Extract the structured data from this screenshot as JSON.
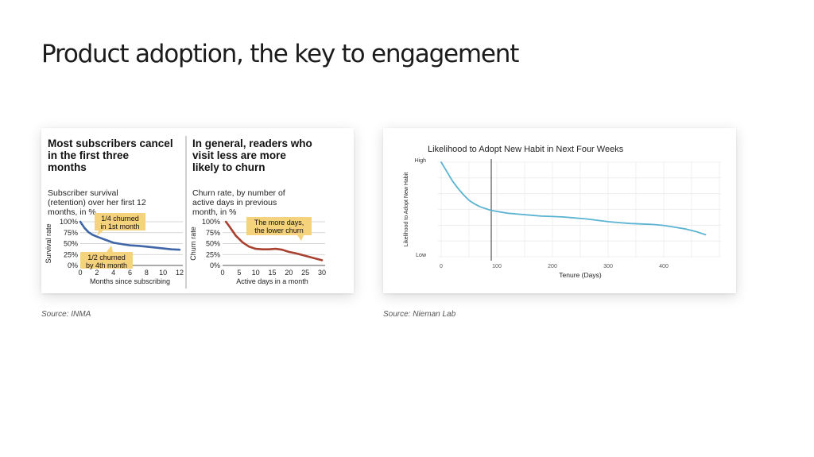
{
  "slide": {
    "title": "Product adoption, the key to engagement",
    "source_left": "Source: INMA",
    "source_right": "Source: Nieman Lab"
  },
  "colors": {
    "retention_line": "#3f66a6",
    "churn_line": "#a8412f",
    "callout_bg": "#f5d27c",
    "habit_line": "#5ab3d1",
    "marker_line": "#333333"
  },
  "chart_data": [
    {
      "type": "line",
      "title": "Most subscribers cancel in the first three months",
      "subtitle": "Subscriber survival (retention) over her first 12 months, in %",
      "xlabel": "Months since subscribing",
      "ylabel": "Survival rate",
      "xlim": [
        0,
        12
      ],
      "ylim": [
        0,
        100
      ],
      "xticks": [
        "0",
        "2",
        "4",
        "6",
        "8",
        "10",
        "12"
      ],
      "yticks": [
        "0%",
        "25%",
        "50%",
        "75%",
        "100%"
      ],
      "grid": true,
      "series": [
        {
          "x": [
            0,
            0.5,
            1,
            1.5,
            2,
            3,
            4,
            5,
            6,
            7,
            8,
            9,
            10,
            11,
            12
          ],
          "values": [
            100,
            86,
            76,
            70,
            66,
            59,
            52,
            49,
            46,
            45,
            43,
            41,
            39,
            37,
            36
          ]
        }
      ],
      "annotations": [
        {
          "lines": [
            "1/4 churned",
            "in 1st month"
          ]
        },
        {
          "lines": [
            "1/2 churned",
            "by 4th month"
          ]
        }
      ]
    },
    {
      "type": "line",
      "title": "In general, readers who visit less are more likely to churn",
      "subtitle": "Churn rate, by number of active days in previous month, in %",
      "xlabel": "Active days in a month",
      "ylabel": "Churn rate",
      "xlim": [
        0,
        30
      ],
      "ylim": [
        0,
        100
      ],
      "xticks": [
        "0",
        "5",
        "10",
        "15",
        "20",
        "25",
        "30"
      ],
      "yticks": [
        "0%",
        "25%",
        "50%",
        "75%",
        "100%"
      ],
      "grid": true,
      "series": [
        {
          "x": [
            1,
            2,
            4,
            6,
            8,
            10,
            12,
            14,
            16,
            18,
            20,
            22,
            24,
            26,
            28,
            30
          ],
          "values": [
            100,
            90,
            68,
            53,
            43,
            38,
            37,
            37,
            38,
            36,
            31,
            28,
            24,
            20,
            16,
            12
          ]
        }
      ],
      "annotations": [
        {
          "lines": [
            "The more days,",
            "the lower churn"
          ]
        }
      ]
    },
    {
      "type": "line",
      "title": "Likelihood to Adopt New Habit in Next Four Weeks",
      "xlabel": "Tenure (Days)",
      "ylabel": "Likelihood to Adopt New Habit",
      "xlim": [
        0,
        500
      ],
      "ylim": [
        0,
        1
      ],
      "xticks": [
        "0",
        "100",
        "200",
        "300",
        "400"
      ],
      "yticks": [
        "Low",
        "High"
      ],
      "grid": true,
      "vline_x": 90,
      "series": [
        {
          "x": [
            0,
            10,
            20,
            30,
            40,
            50,
            60,
            70,
            80,
            90,
            100,
            120,
            140,
            160,
            180,
            200,
            220,
            240,
            260,
            280,
            300,
            320,
            340,
            360,
            380,
            400,
            420,
            440,
            460,
            475
          ],
          "values": [
            1.0,
            0.9,
            0.8,
            0.72,
            0.65,
            0.59,
            0.55,
            0.52,
            0.5,
            0.48,
            0.47,
            0.45,
            0.44,
            0.43,
            0.42,
            0.415,
            0.41,
            0.4,
            0.39,
            0.375,
            0.36,
            0.35,
            0.34,
            0.335,
            0.33,
            0.32,
            0.3,
            0.28,
            0.25,
            0.22
          ]
        }
      ]
    }
  ]
}
